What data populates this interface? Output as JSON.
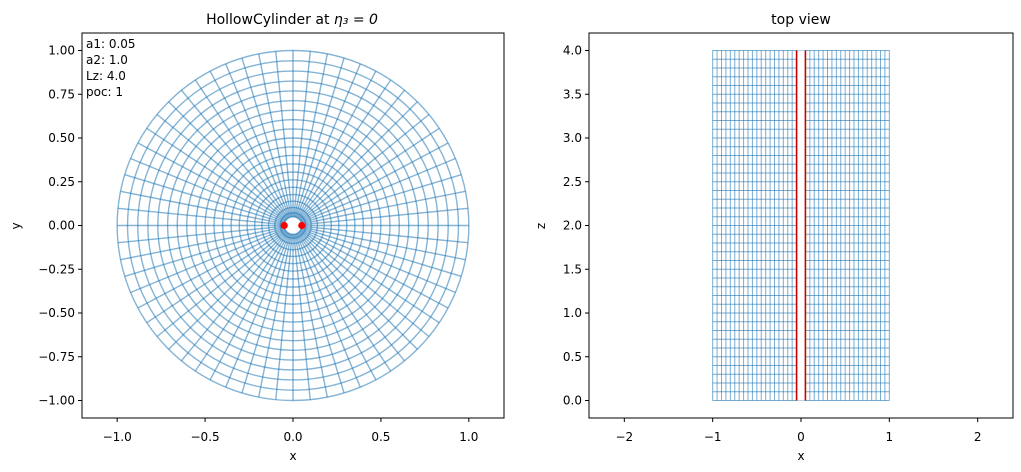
{
  "chart_data": [
    {
      "type": "line",
      "title": "HollowCylinder at ",
      "title_math": "η₃ = 0",
      "xlabel": "x",
      "ylabel": "y",
      "xlim": [
        -1.2,
        1.2
      ],
      "ylim": [
        -1.1,
        1.1
      ],
      "xticks": [
        -1.0,
        -0.5,
        0.0,
        0.5,
        1.0
      ],
      "xtick_labels": [
        "−1.0",
        "−0.5",
        "0.0",
        "0.5",
        "1.0"
      ],
      "yticks": [
        -1.0,
        -0.75,
        -0.5,
        -0.25,
        0.0,
        0.25,
        0.5,
        0.75,
        1.0
      ],
      "ytick_labels": [
        "−1.00",
        "−0.75",
        "−0.50",
        "−0.25",
        "0.00",
        "0.25",
        "0.50",
        "0.75",
        "1.00"
      ],
      "grid": "polar mesh (radial spokes and concentric rings)",
      "inner_radius": 0.05,
      "outer_radius": 1.0,
      "radial_spokes": 64,
      "rings": 20,
      "mesh_color": "#1f77b4",
      "markers": [
        {
          "x": -0.05,
          "y": 0.0,
          "color": "#ff0000"
        },
        {
          "x": 0.05,
          "y": 0.0,
          "color": "#ff0000"
        }
      ],
      "annotation_lines": [
        "a1: 0.05",
        "a2: 1.0",
        "Lz: 4.0",
        "poc: 1"
      ]
    },
    {
      "type": "line",
      "title": "top view",
      "xlabel": "x",
      "ylabel": "z",
      "xlim": [
        -2.4,
        2.4
      ],
      "ylim": [
        -0.2,
        4.2
      ],
      "xticks": [
        -2,
        -1,
        0,
        1,
        2
      ],
      "xtick_labels": [
        "−2",
        "−1",
        "0",
        "1",
        "2"
      ],
      "yticks": [
        0.0,
        0.5,
        1.0,
        1.5,
        2.0,
        2.5,
        3.0,
        3.5,
        4.0
      ],
      "ytick_labels": [
        "0.0",
        "0.5",
        "1.0",
        "1.5",
        "2.0",
        "2.5",
        "3.0",
        "3.5",
        "4.0"
      ],
      "grid": "rectangular mesh",
      "mesh_x_range": [
        -1.0,
        1.0
      ],
      "mesh_z_range": [
        0.0,
        4.0
      ],
      "vertical_lines": 40,
      "horizontal_lines": 40,
      "mesh_color": "#1f77b4",
      "red_lines": [
        {
          "x": -0.05,
          "z_range": [
            0.0,
            4.0
          ],
          "color": "#cc0000"
        },
        {
          "x": 0.05,
          "z_range": [
            0.0,
            4.0
          ],
          "color": "#cc0000"
        }
      ]
    }
  ]
}
